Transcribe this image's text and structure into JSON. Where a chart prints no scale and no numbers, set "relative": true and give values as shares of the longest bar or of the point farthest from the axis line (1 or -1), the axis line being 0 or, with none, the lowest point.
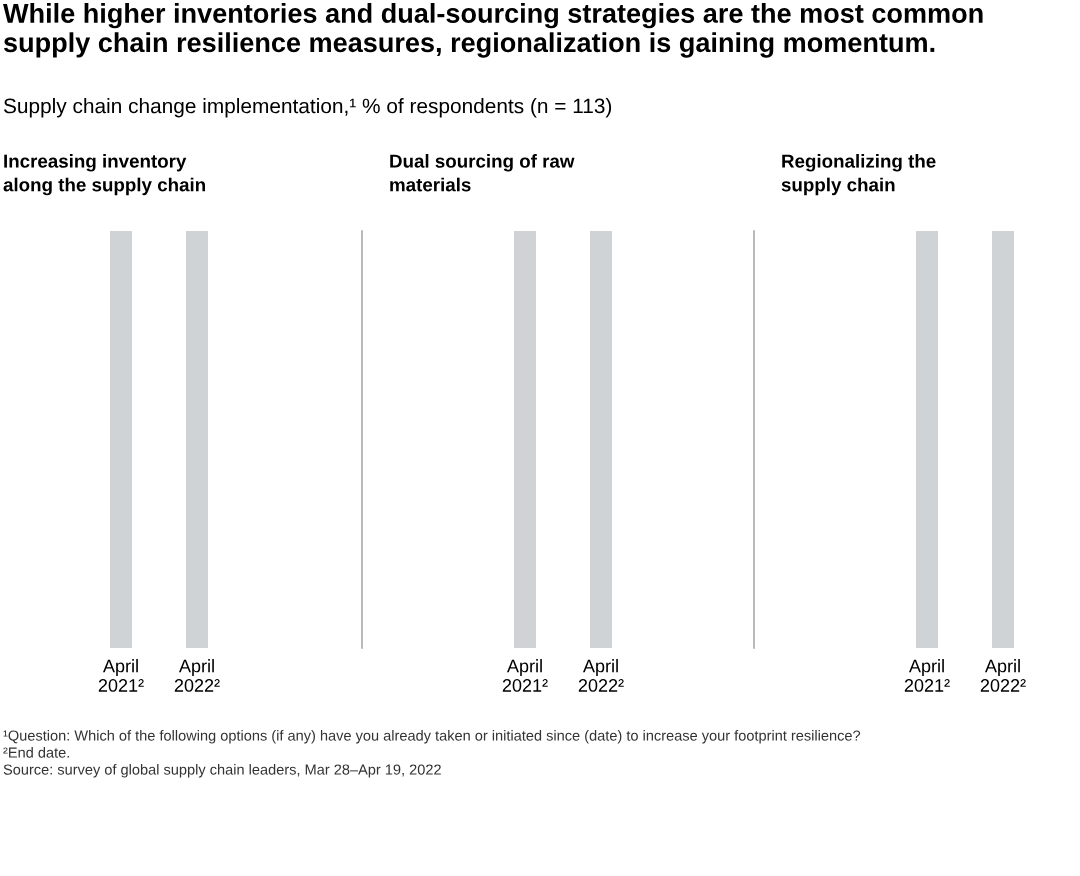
{
  "chart_data": [
    {
      "type": "other",
      "title": "While higher inventories and dual-sourcing strategies are the most common\nsupply chain resilience measures, regionalization is gaining momentum.",
      "subtitle": "Supply chain change implementation,¹ % of respondents (n = 113)",
      "annotations": [
        "¹Question: Which of the following options (if any) have you already taken or initiated since (date) to increase your footprint resilience?",
        "²End date.",
        "Source: survey of global supply chain leaders, Mar 28–Apr 19, 2022"
      ]
    },
    {
      "type": "bar",
      "title": "Increasing inventory\nalong the supply chain",
      "categories": [
        "April\n2021²",
        "April\n2022²"
      ],
      "values": [
        1,
        1
      ],
      "relative": true,
      "color": "#d0d3d6"
    },
    {
      "type": "bar",
      "title": "Dual sourcing of raw\nmaterials",
      "categories": [
        "April\n2021²",
        "April\n2022²"
      ],
      "values": [
        1,
        1
      ],
      "relative": true,
      "color": "#d0d3d6"
    },
    {
      "type": "bar",
      "title": "Regionalizing the\nsupply chain",
      "categories": [
        "April\n2021²",
        "April\n2022²"
      ],
      "values": [
        1,
        1
      ],
      "relative": true,
      "color": "#d0d3d6"
    }
  ]
}
